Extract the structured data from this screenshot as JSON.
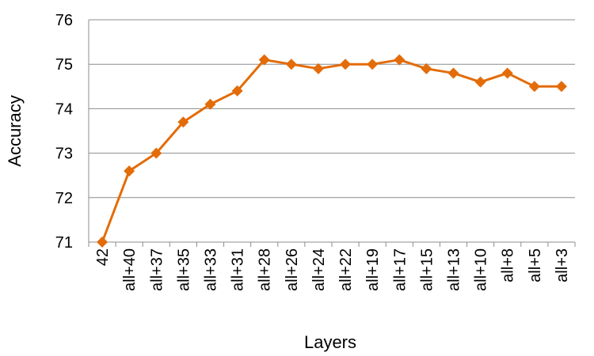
{
  "chart_data": {
    "type": "line",
    "title": "",
    "xlabel": "Layers",
    "ylabel": "Accuracy",
    "ylim": [
      71,
      76
    ],
    "yticks": [
      "71",
      "72",
      "73",
      "74",
      "75",
      "76"
    ],
    "grid": true,
    "legend": "none",
    "categories": [
      "42",
      "all+40",
      "all+37",
      "all+35",
      "all+33",
      "all+31",
      "all+28",
      "all+26",
      "all+24",
      "all+22",
      "all+19",
      "all+17",
      "all+15",
      "all+13",
      "all+10",
      "all+8",
      "all+5",
      "all+3"
    ],
    "series": [
      {
        "color": "#E36C09",
        "marker": "diamond",
        "values": [
          71.0,
          72.6,
          73.0,
          73.7,
          74.1,
          74.4,
          75.1,
          75.0,
          74.9,
          75.0,
          75.0,
          75.1,
          74.9,
          74.8,
          74.6,
          74.8,
          74.5,
          74.5
        ]
      }
    ]
  }
}
